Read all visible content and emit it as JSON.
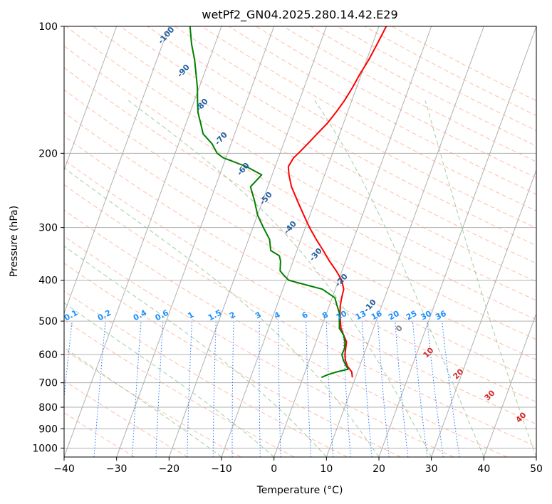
{
  "chart_data": {
    "type": "line",
    "title": "wetPf2_GN04.2025.280.14.42.E29",
    "xlabel": "Temperature (°C)",
    "ylabel": "Pressure (hPa)",
    "xlim": [
      -40,
      50
    ],
    "ylim": [
      1050,
      100
    ],
    "x_ticks": [
      -40,
      -30,
      -20,
      -10,
      0,
      10,
      20,
      30,
      40,
      50
    ],
    "y_ticks": [
      100,
      200,
      300,
      400,
      500,
      600,
      700,
      800,
      900,
      1000
    ],
    "colors": {
      "temperature": "#ff0000",
      "dewpoint": "#008000",
      "grid": "#b0b0b0",
      "dry_adiabat": "#ff9977",
      "moist_adiabat": "#77bb77",
      "mixing_ratio": "#1f77ff",
      "label_blue": "#1e90ff",
      "label_dark_blue": "#1f5fa0",
      "label_red": "#d62728",
      "label_gray": "#808080"
    },
    "series": [
      {
        "name": "Temperature",
        "pressure": [
          680,
          660,
          640,
          620,
          600,
          580,
          560,
          540,
          520,
          500,
          480,
          460,
          440,
          420,
          400,
          380,
          360,
          340,
          320,
          300,
          280,
          260,
          240,
          225,
          215,
          205,
          200,
          190,
          180,
          170,
          160,
          150,
          140,
          130,
          120,
          110,
          100
        ],
        "values": [
          9.4,
          8.9,
          7.7,
          6.9,
          6.4,
          6.1,
          5.8,
          4.8,
          3.8,
          3.2,
          2.6,
          2.1,
          1.8,
          1.6,
          0.6,
          -1.1,
          -3.1,
          -5.0,
          -7.1,
          -9.2,
          -11.2,
          -13.3,
          -15.5,
          -16.8,
          -17.5,
          -17.1,
          -16.5,
          -15.4,
          -14.3,
          -13.1,
          -12.2,
          -11.4,
          -10.8,
          -10.3,
          -9.6,
          -9.1,
          -8.6
        ]
      },
      {
        "name": "Dewpoint",
        "pressure": [
          680,
          670,
          660,
          650,
          640,
          620,
          600,
          580,
          560,
          540,
          520,
          500,
          480,
          460,
          440,
          420,
          410,
          400,
          390,
          380,
          360,
          350,
          340,
          320,
          300,
          280,
          260,
          240,
          225,
          215,
          205,
          200,
          190,
          180,
          170,
          160,
          150,
          140,
          130,
          120,
          110,
          100
        ],
        "values": [
          3.5,
          4.5,
          6.0,
          8.0,
          7.5,
          6.5,
          5.8,
          5.9,
          5.5,
          4.8,
          3.5,
          3.0,
          2.5,
          1.5,
          0.5,
          -2.5,
          -6.0,
          -9.5,
          -10.7,
          -11.8,
          -12.4,
          -13.0,
          -15.0,
          -16.0,
          -18.0,
          -20.0,
          -21.5,
          -23.3,
          -22.0,
          -25.5,
          -30.5,
          -32.0,
          -33.6,
          -36.0,
          -37.2,
          -38.5,
          -39.4,
          -40.3,
          -41.5,
          -42.8,
          -44.5,
          -46.0
        ]
      }
    ],
    "mixing_ratio_lines": [
      "0.1",
      "0.2",
      "0.4",
      "0.6",
      "1",
      "1.5",
      "2",
      "3",
      "4",
      "6",
      "8",
      "10",
      "13",
      "16",
      "20",
      "25",
      "30",
      "36"
    ],
    "dry_adiabat_labels": [
      "-100",
      "-90",
      "-80",
      "-70",
      "-60",
      "-50",
      "-40",
      "-30",
      "-20",
      "-10"
    ],
    "moist_adiabat_labels": [
      "0",
      "10",
      "20",
      "30",
      "40"
    ],
    "grid": true
  }
}
